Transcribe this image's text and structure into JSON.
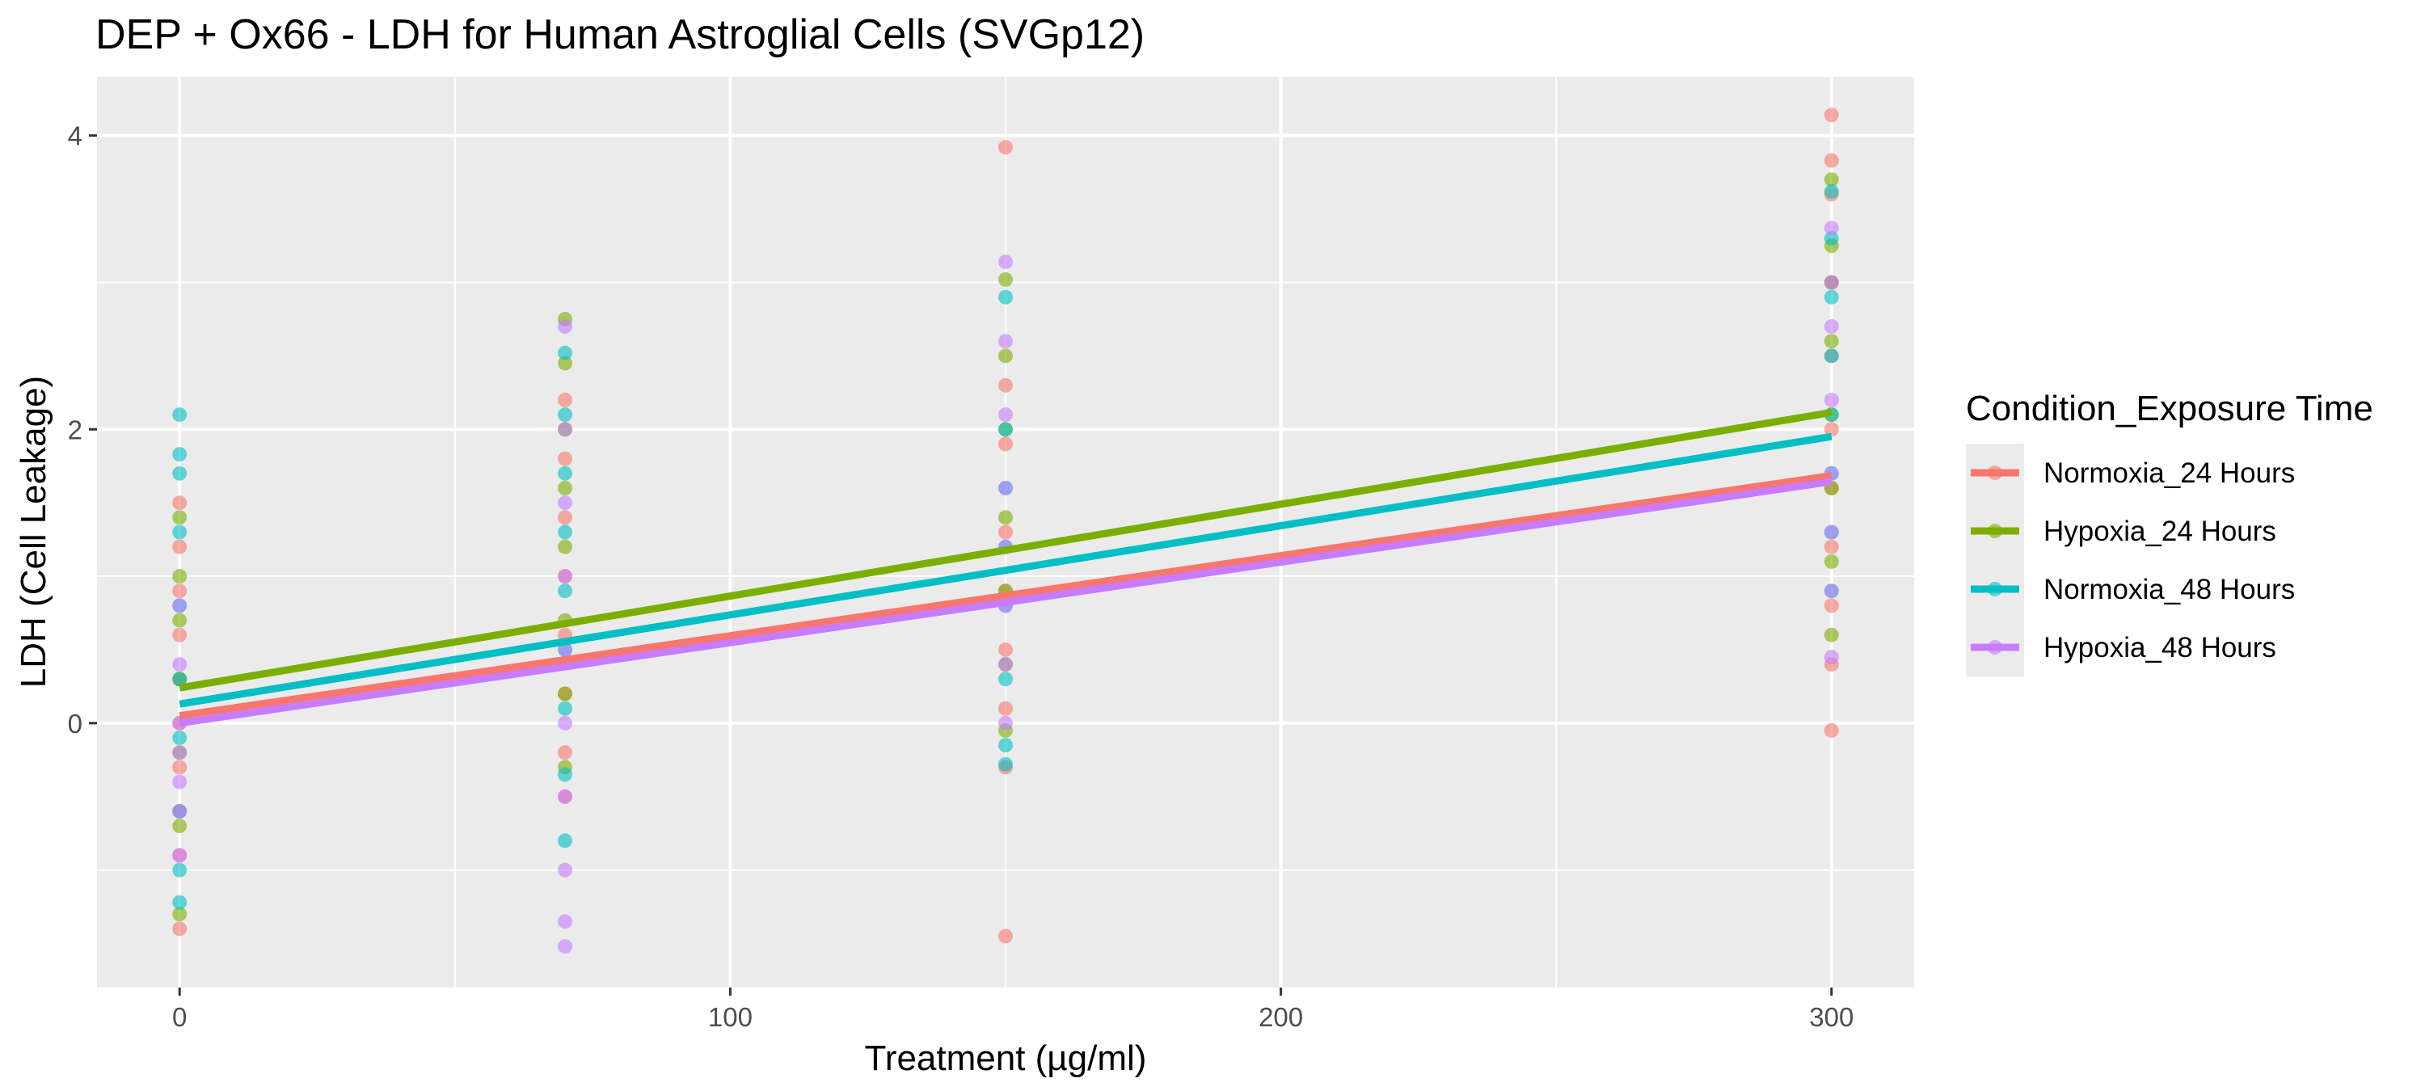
{
  "chart_data": {
    "type": "scatter",
    "title": "DEP + Ox66 - LDH for Human Astroglial Cells (SVGp12)",
    "xlabel": "Treatment (µg/ml)",
    "ylabel": "LDH (Cell Leakage)",
    "xlim": [
      -15,
      315
    ],
    "ylim": [
      -1.8,
      4.4
    ],
    "x_ticks": [
      0,
      100,
      200,
      300
    ],
    "y_ticks": [
      0,
      2,
      4
    ],
    "x_tick_labels": [
      "0",
      "100",
      "200",
      "300"
    ],
    "y_tick_labels": [
      "0",
      "2",
      "4"
    ],
    "grid": true,
    "panel_background": "#ebebeb",
    "legend_title": "Condition_Exposure Time",
    "legend_position": "right",
    "series": [
      {
        "name": "Normoxia_24 Hours",
        "color": "#f8766d",
        "fit": {
          "intercept": 0.05,
          "slope": 0.00545
        },
        "points": [
          [
            0,
            -1.4
          ],
          [
            0,
            -0.9
          ],
          [
            0,
            -0.6
          ],
          [
            0,
            -0.3
          ],
          [
            0,
            0.0
          ],
          [
            0,
            0.3
          ],
          [
            0,
            0.6
          ],
          [
            0,
            0.9
          ],
          [
            0,
            1.2
          ],
          [
            0,
            1.5
          ],
          [
            70,
            -0.5
          ],
          [
            70,
            -0.2
          ],
          [
            70,
            0.2
          ],
          [
            70,
            0.6
          ],
          [
            70,
            1.0
          ],
          [
            70,
            1.4
          ],
          [
            70,
            1.8
          ],
          [
            70,
            2.2
          ],
          [
            150,
            -1.45
          ],
          [
            150,
            -0.3
          ],
          [
            150,
            0.1
          ],
          [
            150,
            0.5
          ],
          [
            150,
            0.9
          ],
          [
            150,
            1.3
          ],
          [
            150,
            1.9
          ],
          [
            150,
            2.3
          ],
          [
            150,
            3.92
          ],
          [
            300,
            -0.05
          ],
          [
            300,
            0.4
          ],
          [
            300,
            0.8
          ],
          [
            300,
            1.2
          ],
          [
            300,
            1.6
          ],
          [
            300,
            2.0
          ],
          [
            300,
            2.5
          ],
          [
            300,
            3.0
          ],
          [
            300,
            3.6
          ],
          [
            300,
            3.83
          ],
          [
            300,
            4.14
          ]
        ]
      },
      {
        "name": "Hypoxia_24 Hours",
        "color": "#7cae00",
        "fit": {
          "intercept": 0.24,
          "slope": 0.00625
        },
        "points": [
          [
            0,
            -1.3
          ],
          [
            0,
            -0.7
          ],
          [
            0,
            -0.2
          ],
          [
            0,
            0.3
          ],
          [
            0,
            0.7
          ],
          [
            0,
            1.0
          ],
          [
            0,
            1.4
          ],
          [
            70,
            -0.3
          ],
          [
            70,
            0.2
          ],
          [
            70,
            0.7
          ],
          [
            70,
            1.2
          ],
          [
            70,
            1.6
          ],
          [
            70,
            2.0
          ],
          [
            70,
            2.45
          ],
          [
            70,
            2.75
          ],
          [
            150,
            -0.05
          ],
          [
            150,
            0.4
          ],
          [
            150,
            0.9
          ],
          [
            150,
            1.4
          ],
          [
            150,
            2.0
          ],
          [
            150,
            2.5
          ],
          [
            150,
            3.02
          ],
          [
            300,
            0.6
          ],
          [
            300,
            1.1
          ],
          [
            300,
            1.6
          ],
          [
            300,
            2.1
          ],
          [
            300,
            2.6
          ],
          [
            300,
            3.0
          ],
          [
            300,
            3.25
          ],
          [
            300,
            3.7
          ]
        ]
      },
      {
        "name": "Normoxia_48 Hours",
        "color": "#00bfc4",
        "fit": {
          "intercept": 0.13,
          "slope": 0.00607
        },
        "points": [
          [
            0,
            -1.22
          ],
          [
            0,
            -1.0
          ],
          [
            0,
            -0.6
          ],
          [
            0,
            -0.1
          ],
          [
            0,
            0.3
          ],
          [
            0,
            0.8
          ],
          [
            0,
            1.3
          ],
          [
            0,
            1.7
          ],
          [
            0,
            1.83
          ],
          [
            0,
            2.1
          ],
          [
            70,
            -0.8
          ],
          [
            70,
            -0.35
          ],
          [
            70,
            0.1
          ],
          [
            70,
            0.5
          ],
          [
            70,
            0.9
          ],
          [
            70,
            1.3
          ],
          [
            70,
            1.7
          ],
          [
            70,
            2.1
          ],
          [
            70,
            2.52
          ],
          [
            150,
            -0.28
          ],
          [
            150,
            -0.15
          ],
          [
            150,
            0.3
          ],
          [
            150,
            0.8
          ],
          [
            150,
            1.2
          ],
          [
            150,
            1.6
          ],
          [
            150,
            2.0
          ],
          [
            150,
            2.9
          ],
          [
            300,
            0.9
          ],
          [
            300,
            1.3
          ],
          [
            300,
            1.7
          ],
          [
            300,
            2.1
          ],
          [
            300,
            2.5
          ],
          [
            300,
            2.9
          ],
          [
            300,
            3.3
          ],
          [
            300,
            3.62
          ]
        ]
      },
      {
        "name": "Hypoxia_48 Hours",
        "color": "#c77cff",
        "fit": {
          "intercept": 0.0,
          "slope": 0.00548
        },
        "points": [
          [
            0,
            -0.9
          ],
          [
            0,
            -0.6
          ],
          [
            0,
            -0.4
          ],
          [
            0,
            -0.2
          ],
          [
            0,
            0.0
          ],
          [
            0,
            0.4
          ],
          [
            0,
            0.8
          ],
          [
            70,
            -1.52
          ],
          [
            70,
            -1.35
          ],
          [
            70,
            -1.0
          ],
          [
            70,
            -0.5
          ],
          [
            70,
            0.0
          ],
          [
            70,
            0.5
          ],
          [
            70,
            1.0
          ],
          [
            70,
            1.5
          ],
          [
            70,
            2.0
          ],
          [
            70,
            2.7
          ],
          [
            150,
            0.0
          ],
          [
            150,
            0.4
          ],
          [
            150,
            0.8
          ],
          [
            150,
            1.2
          ],
          [
            150,
            1.6
          ],
          [
            150,
            2.1
          ],
          [
            150,
            2.6
          ],
          [
            150,
            3.14
          ],
          [
            300,
            0.45
          ],
          [
            300,
            0.9
          ],
          [
            300,
            1.3
          ],
          [
            300,
            1.7
          ],
          [
            300,
            2.2
          ],
          [
            300,
            2.7
          ],
          [
            300,
            3.0
          ],
          [
            300,
            3.37
          ]
        ]
      }
    ]
  }
}
